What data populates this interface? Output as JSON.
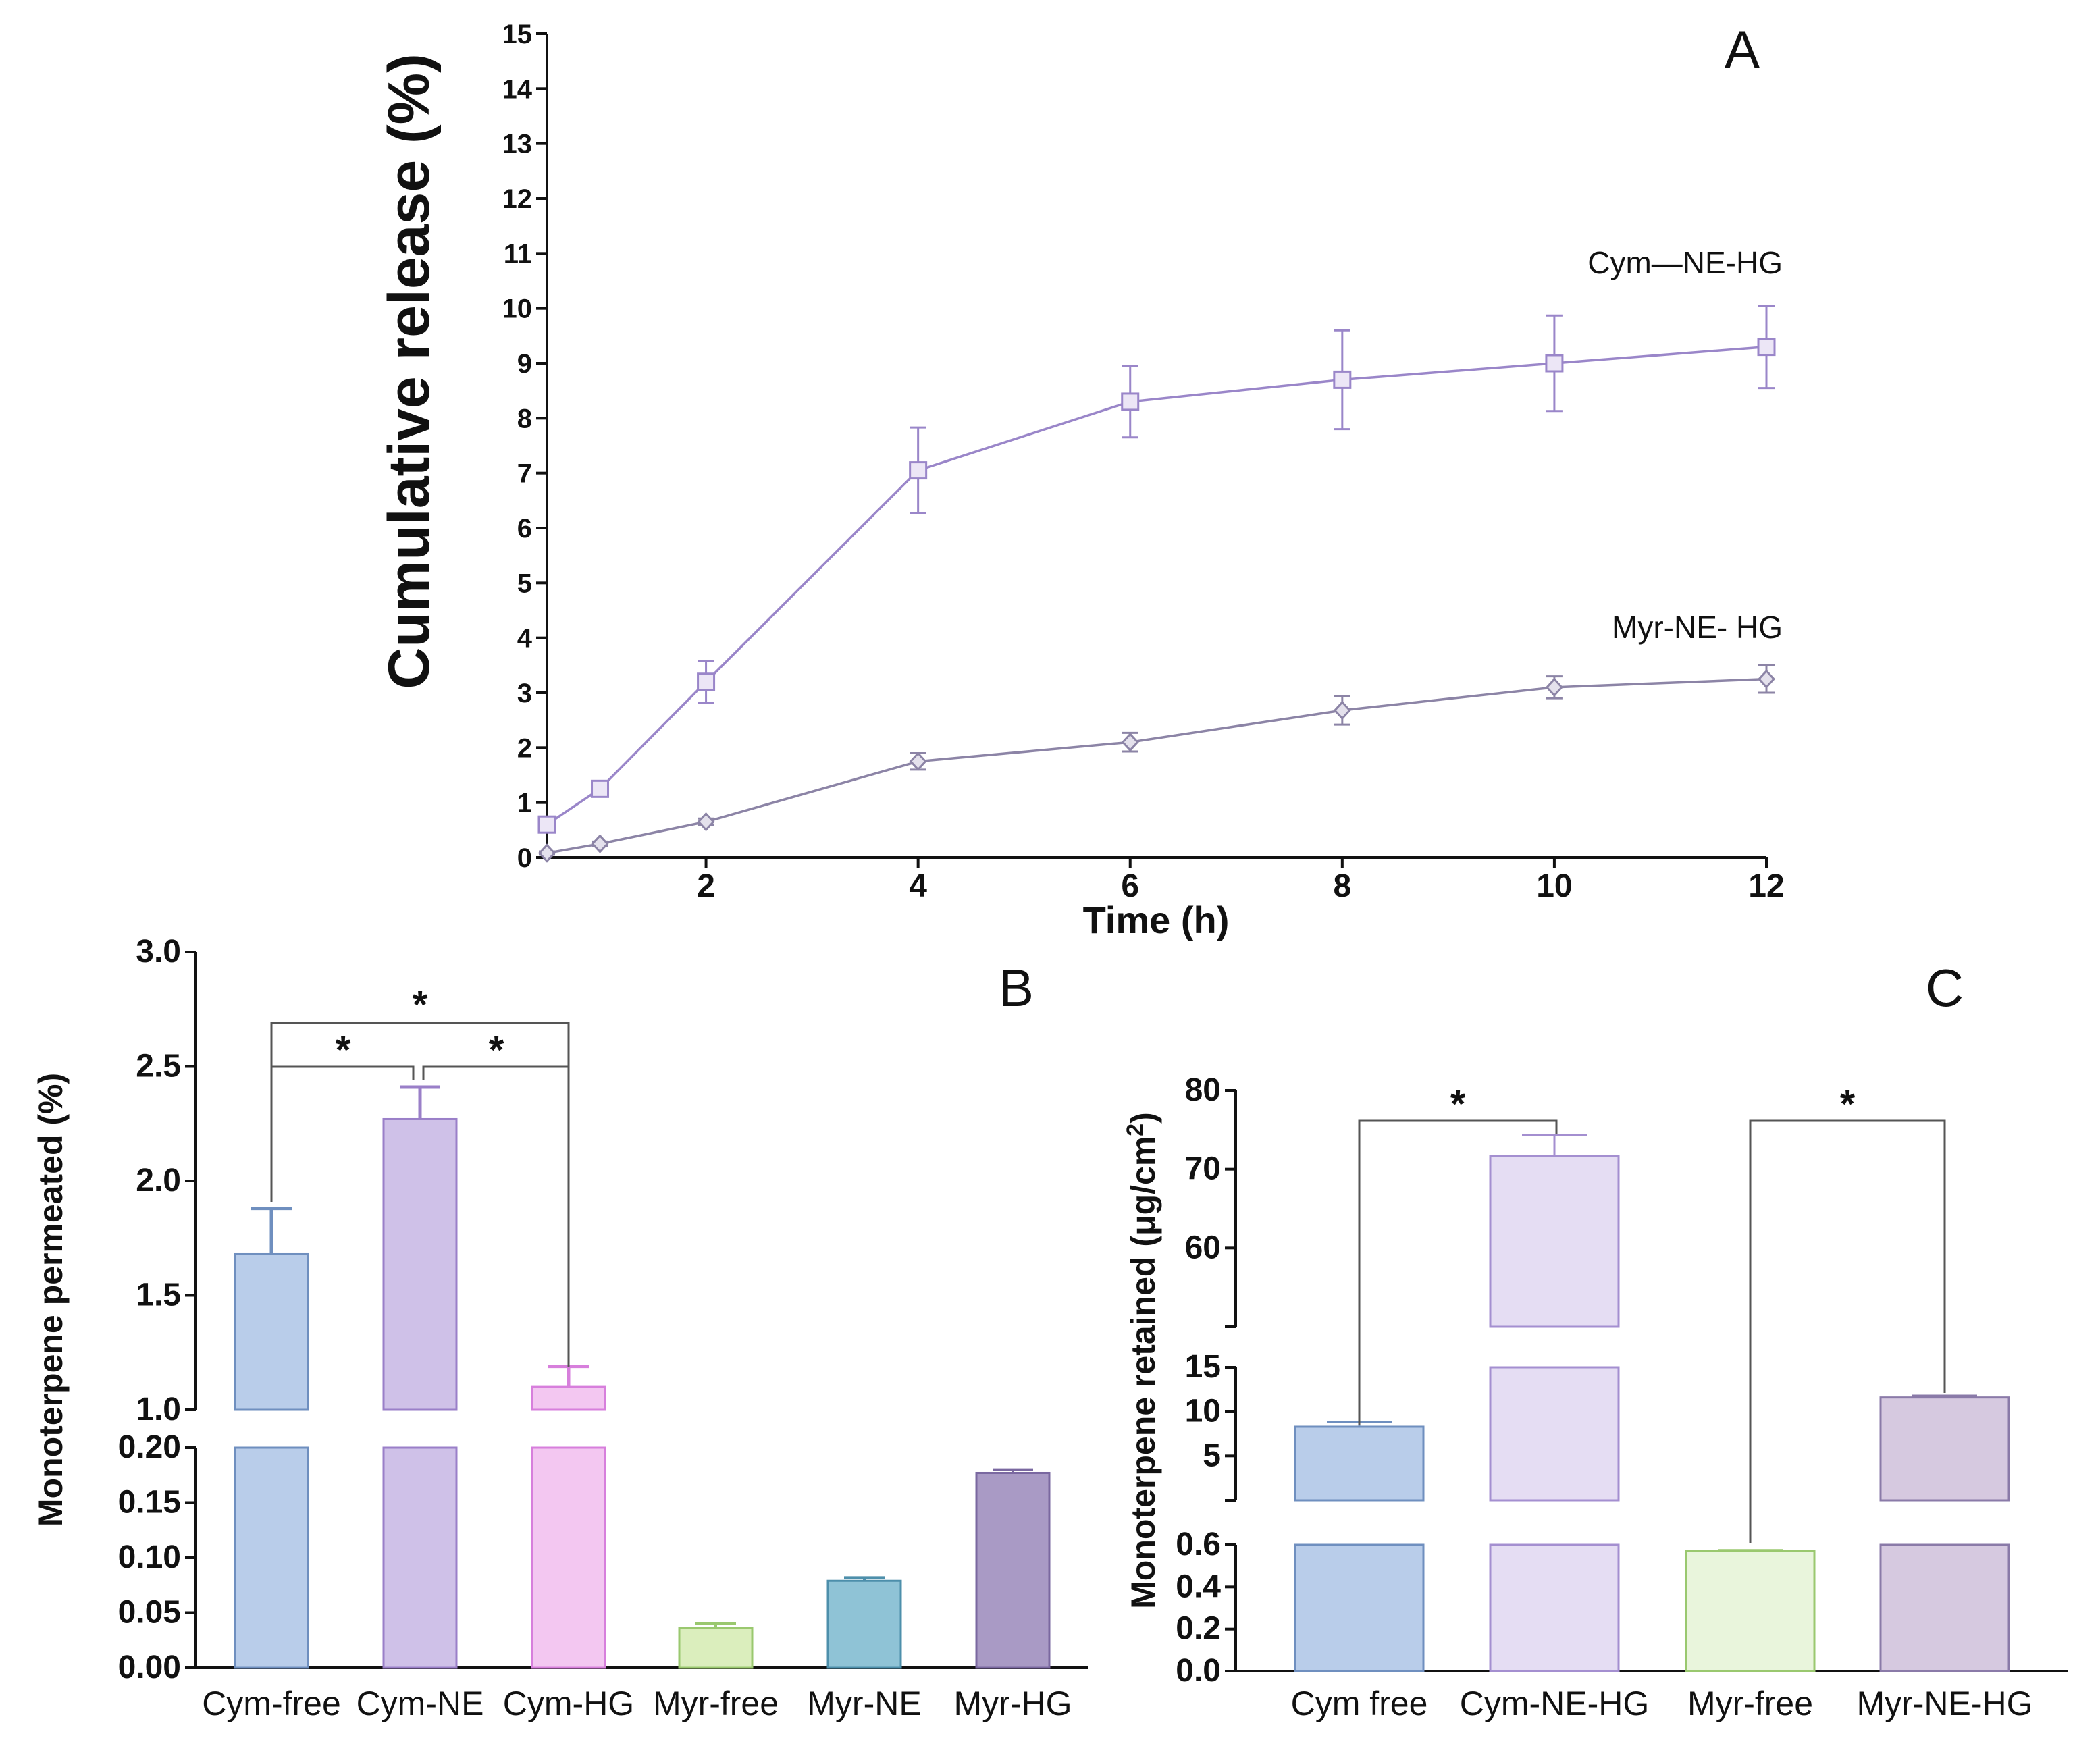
{
  "chart_data": [
    {
      "panel": "A",
      "type": "line",
      "title": "",
      "xlabel": "Time (h)",
      "ylabel": "Cumulative release (%)",
      "xlim": [
        0.5,
        12
      ],
      "ylim": [
        0,
        15
      ],
      "xticks": [
        "2",
        "4",
        "6",
        "8",
        "10",
        "12"
      ],
      "yticks": [
        "0",
        "1",
        "2",
        "3",
        "4",
        "5",
        "6",
        "7",
        "8",
        "9",
        "10",
        "11",
        "12",
        "13",
        "14",
        "15"
      ],
      "series": [
        {
          "name": "Cym—NE-HG",
          "marker": "square",
          "color": "#9a86c9",
          "x": [
            0.5,
            1,
            2,
            4,
            6,
            8,
            10,
            12
          ],
          "y": [
            0.6,
            1.25,
            3.2,
            7.05,
            8.3,
            8.7,
            9.0,
            9.3
          ],
          "err": [
            0.1,
            0.1,
            0.38,
            0.78,
            0.65,
            0.9,
            0.87,
            0.75
          ]
        },
        {
          "name": "Myr-NE- HG",
          "marker": "diamond",
          "color": "#8c84a6",
          "x": [
            0.5,
            1,
            2,
            4,
            6,
            8,
            10,
            12
          ],
          "y": [
            0.08,
            0.25,
            0.65,
            1.75,
            2.1,
            2.68,
            3.1,
            3.25
          ],
          "err": [
            0.03,
            0.04,
            0.06,
            0.15,
            0.17,
            0.26,
            0.2,
            0.25
          ]
        }
      ]
    },
    {
      "panel": "B",
      "type": "bar",
      "ylabel": "Monoterpene permeated (%)",
      "categories": [
        "Cym-free",
        "Cym-NE",
        "Cym-HG",
        "Myr-free",
        "Myr-NE",
        "Myr-HG"
      ],
      "values": [
        1.68,
        2.27,
        1.1,
        0.036,
        0.079,
        0.177
      ],
      "err": [
        0.2,
        0.14,
        0.09,
        0.004,
        0.003,
        0.003
      ],
      "colors": [
        "#b9cdea",
        "#cfc1e8",
        "#f3c7f1",
        "#dbeebd",
        "#8fc3d6",
        "#a99ac5"
      ],
      "edge_colors": [
        "#6f8fbf",
        "#9a7fc8",
        "#d77fdc",
        "#9ac86f",
        "#4d8fab",
        "#7a68a0"
      ],
      "axis_break": [
        0.2,
        1.0
      ],
      "ylim_lower": [
        0,
        0.2
      ],
      "ylim_upper": [
        1.0,
        3.0
      ],
      "yticks_lower": [
        "0.00",
        "0.05",
        "0.10",
        "0.15",
        "0.20"
      ],
      "yticks_upper": [
        "1.0",
        "1.5",
        "2.0",
        "2.5",
        "3.0"
      ],
      "significance": [
        "*",
        "*",
        "*"
      ]
    },
    {
      "panel": "C",
      "type": "bar",
      "ylabel": "Monoterpene retained (μg/cm",
      "ylabel_sup": "2",
      "ylabel_end": ")",
      "categories": [
        "Cym free",
        "Cym-NE-HG",
        "Myr-free",
        "Myr-NE-HG"
      ],
      "values": [
        8.3,
        71.7,
        0.57,
        11.6
      ],
      "err": [
        0.5,
        2.6,
        0.005,
        0.2
      ],
      "colors": [
        "#b9cdea",
        "#e5ddf3",
        "#e9f5dc",
        "#d6c9e0"
      ],
      "edge_colors": [
        "#6f8fbf",
        "#a48fd0",
        "#9ac86f",
        "#8a7aa8"
      ],
      "axis_segments": [
        [
          0,
          0.6
        ],
        [
          0.6,
          15
        ],
        [
          50,
          80
        ]
      ],
      "yticks_bottom": [
        "0.0",
        "0.2",
        "0.4",
        "0.6"
      ],
      "yticks_middle": [
        "5",
        "10",
        "15"
      ],
      "yticks_top": [
        "60",
        "70",
        "80"
      ],
      "significance": [
        "*",
        "*"
      ]
    }
  ]
}
